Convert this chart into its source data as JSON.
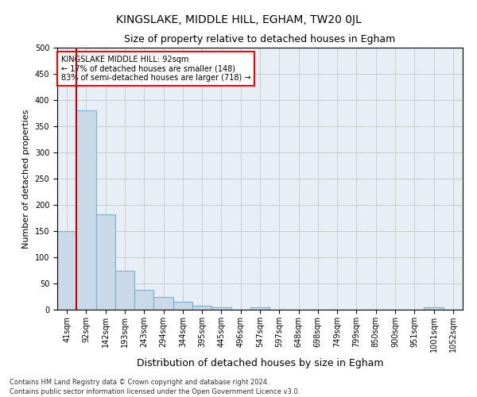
{
  "title": "KINGSLAKE, MIDDLE HILL, EGHAM, TW20 0JL",
  "subtitle": "Size of property relative to detached houses in Egham",
  "xlabel": "Distribution of detached houses by size in Egham",
  "ylabel": "Number of detached properties",
  "footnote": "Contains HM Land Registry data © Crown copyright and database right 2024.\nContains public sector information licensed under the Open Government Licence v3.0.",
  "categories": [
    "41sqm",
    "92sqm",
    "142sqm",
    "193sqm",
    "243sqm",
    "294sqm",
    "344sqm",
    "395sqm",
    "445sqm",
    "496sqm",
    "547sqm",
    "597sqm",
    "648sqm",
    "698sqm",
    "749sqm",
    "799sqm",
    "850sqm",
    "900sqm",
    "951sqm",
    "1001sqm",
    "1052sqm"
  ],
  "values": [
    150,
    380,
    182,
    75,
    38,
    25,
    15,
    7,
    5,
    0,
    5,
    0,
    0,
    0,
    0,
    0,
    0,
    0,
    0,
    5,
    0
  ],
  "bar_color": "#c9d9e8",
  "bar_edge_color": "#7bafd4",
  "red_line_index": 1,
  "annotation_text": "KINGSLAKE MIDDLE HILL: 92sqm\n← 17% of detached houses are smaller (148)\n83% of semi-detached houses are larger (718) →",
  "annotation_box_color": "white",
  "annotation_box_edge_color": "red",
  "red_line_color": "#cc0000",
  "ylim": [
    0,
    500
  ],
  "yticks": [
    0,
    50,
    100,
    150,
    200,
    250,
    300,
    350,
    400,
    450,
    500
  ],
  "grid_color": "#cccccc",
  "bg_color": "#e8eef5",
  "title_fontsize": 10,
  "subtitle_fontsize": 9,
  "xlabel_fontsize": 9,
  "ylabel_fontsize": 8,
  "tick_fontsize": 7,
  "annot_fontsize": 7,
  "footnote_fontsize": 6
}
